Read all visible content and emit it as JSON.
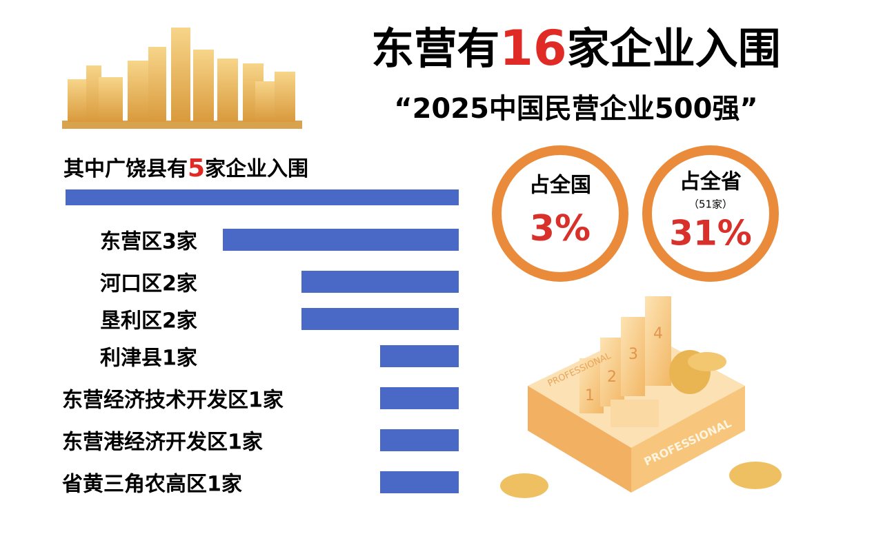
{
  "title": {
    "before": "东营有",
    "highlight": "16",
    "after": "家企业入围"
  },
  "subtitle": "“2025中国民营企业500强”",
  "chart_data": {
    "type": "bar",
    "total": {
      "before": "其中广饶县有",
      "value": 5,
      "after": "家企业入围"
    },
    "categories": [
      "东营区3家",
      "河口区2家",
      "垦利区2家",
      "利津县1家",
      "东营经济技术开发区1家",
      "东营港经济开发区1家",
      "省黄三角农高区1家"
    ],
    "values": [
      3,
      2,
      2,
      1,
      1,
      1,
      1
    ],
    "color": "#4a68c6"
  },
  "badges": [
    {
      "label": "占全国",
      "value": "3%"
    },
    {
      "label": "占全省",
      "note": "（51家）",
      "value": "31%"
    }
  ],
  "illustration": {
    "words": [
      "PROFESSIONAL",
      "PROFESSIONAL"
    ],
    "numbers": [
      "1",
      "2",
      "3",
      "4"
    ]
  }
}
